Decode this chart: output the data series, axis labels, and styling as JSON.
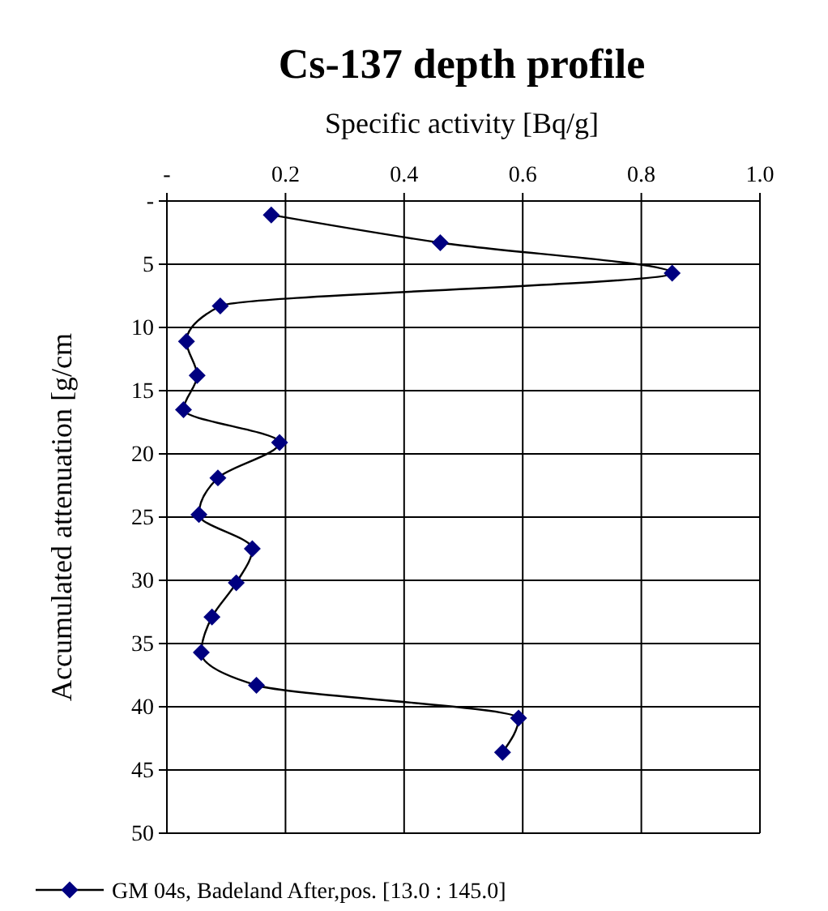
{
  "chart_data": {
    "type": "line",
    "title": "Cs-137 depth profile",
    "xlabel": "Specific activity [Bq/g]",
    "ylabel": "Accumulated attenuation [g/cm",
    "series": [
      {
        "name": "GM 04s, Badeland After,pos. [13.0 : 145.0]",
        "color": "#000080",
        "x": [
          0.176,
          0.461,
          0.852,
          0.09,
          0.033,
          0.051,
          0.028,
          0.19,
          0.086,
          0.054,
          0.144,
          0.117,
          0.076,
          0.058,
          0.151,
          0.593,
          0.566
        ],
        "values": [
          1.1,
          3.3,
          5.7,
          8.3,
          11.1,
          13.8,
          16.5,
          19.1,
          21.9,
          24.8,
          27.5,
          30.2,
          32.9,
          35.7,
          38.3,
          40.9,
          43.6
        ]
      }
    ],
    "xlim": [
      0,
      1
    ],
    "xticks": [
      {
        "value": 0,
        "label": "-"
      },
      0.2,
      0.4,
      0.6,
      0.8,
      {
        "value": 1,
        "label": "1.0"
      }
    ],
    "ylim": [
      50,
      0
    ],
    "yticks": [
      {
        "value": 0,
        "label": "-"
      },
      5,
      10,
      15,
      20,
      25,
      30,
      35,
      40,
      45,
      50
    ],
    "grid": true,
    "legend": "bottom",
    "marker": "diamond",
    "line_style": "solid"
  }
}
